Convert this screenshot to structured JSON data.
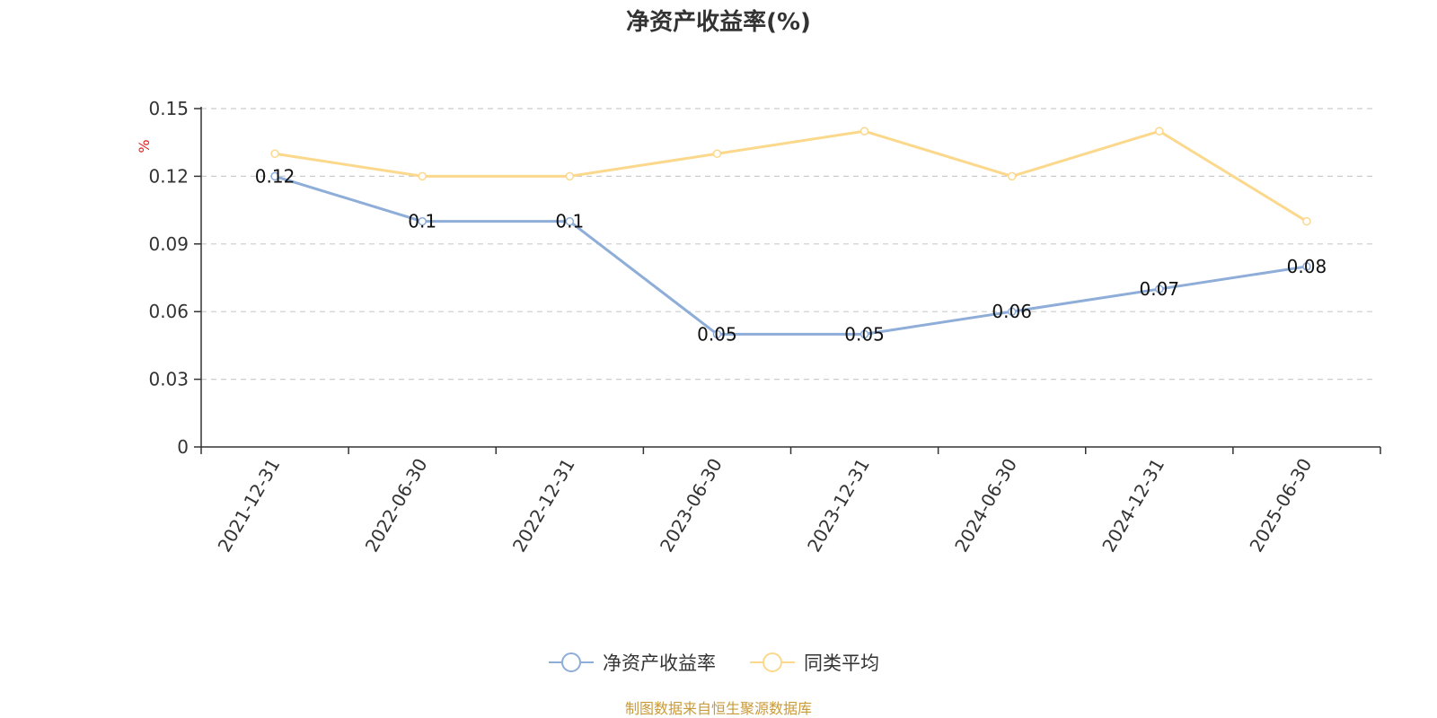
{
  "chart_data": {
    "type": "line",
    "title": "净资产收益率(%)",
    "ylabel": "%",
    "xlabel": "",
    "categories": [
      "2021-12-31",
      "2022-06-30",
      "2022-12-31",
      "2023-06-30",
      "2023-12-31",
      "2024-06-30",
      "2024-12-31",
      "2025-06-30"
    ],
    "ylim": [
      0,
      0.15
    ],
    "yticks": [
      "0",
      "0.03",
      "0.06",
      "0.09",
      "0.12",
      "0.15"
    ],
    "grid": true,
    "legend_position": "bottom",
    "series": [
      {
        "name": "净资产收益率",
        "values": [
          0.12,
          0.1,
          0.1,
          0.05,
          0.05,
          0.06,
          0.07,
          0.08
        ],
        "labels": [
          "0.12",
          "0.1",
          "0.1",
          "0.05",
          "0.05",
          "0.06",
          "0.07",
          "0.08"
        ],
        "color": "#8eadd8"
      },
      {
        "name": "同类平均",
        "values": [
          0.13,
          0.12,
          0.12,
          0.13,
          0.14,
          0.12,
          0.14,
          0.1
        ],
        "color": "#fbd88c"
      }
    ]
  },
  "footer": {
    "source": "制图数据来自恒生聚源数据库"
  },
  "colors": {
    "title": "#333333",
    "axis": "#333333",
    "grid": "#cccccc",
    "unit": "#e02020",
    "source": "#c89a3a"
  }
}
